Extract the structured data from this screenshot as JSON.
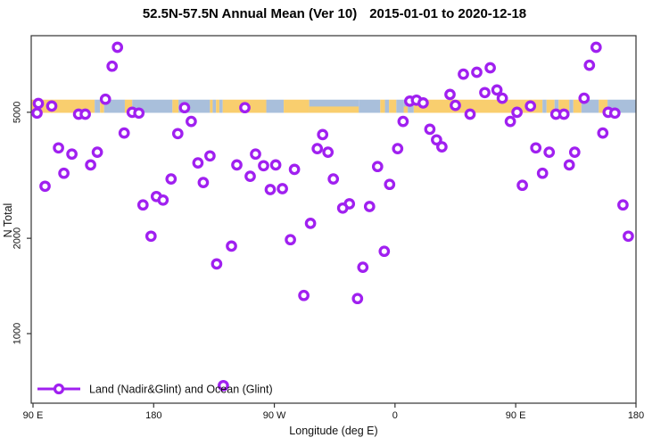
{
  "title": {
    "main": "52.5N-57.5N Annual Mean (Ver 10)",
    "dates": "2015-01-01 to 2020-12-18"
  },
  "colors": {
    "marker_purple": "#A020F0",
    "land": "#F9CE6E",
    "ocean": "#A9BFDB",
    "axis": "#333333"
  },
  "chart_data": {
    "type": "scatter",
    "title": "52.5N-57.5N Annual Mean (Ver 10)  2015-01-01 to 2020-12-18",
    "xlabel": "Longitude (deg E)",
    "ylabel": "N Total",
    "legend": "Land (Nadir&Glint) and Ocean (Glint)",
    "x_axis": {
      "note": "longitude axis wraps 450 degrees: 90E to 180 to 90W to 0 to 90E to 180",
      "range": [
        87,
        540
      ],
      "ticks": [
        {
          "pos": 90,
          "label": "90 E"
        },
        {
          "pos": 180,
          "label": "180"
        },
        {
          "pos": 270,
          "label": "90 W"
        },
        {
          "pos": 360,
          "label": "0"
        },
        {
          "pos": 450,
          "label": "90 E"
        },
        {
          "pos": 540,
          "label": "180"
        }
      ]
    },
    "y_axis": {
      "scale": "log",
      "range": [
        600,
        8700
      ],
      "ticks": [
        {
          "value": 1000,
          "label": "1000"
        },
        {
          "value": 2000,
          "label": "2000"
        },
        {
          "value": 5000,
          "label": "5000"
        }
      ]
    },
    "map_band": {
      "description": "land/ocean map strip across the 52.5N-57.5N latitude band",
      "n_total_range": [
        4980,
        5480
      ],
      "segments": [
        [
          87,
          136,
          "land"
        ],
        [
          136,
          140,
          "ocean"
        ],
        [
          140,
          143,
          "land"
        ],
        [
          143,
          158.5,
          "ocean"
        ],
        [
          158.5,
          164,
          "land"
        ],
        [
          164,
          194,
          "ocean"
        ],
        [
          194,
          198.5,
          "land"
        ],
        [
          198.5,
          222,
          "ocean"
        ],
        [
          222,
          224,
          "land"
        ],
        [
          224,
          226.5,
          "ocean"
        ],
        [
          226.5,
          229,
          "land"
        ],
        [
          229,
          231.5,
          "ocean"
        ],
        [
          231.5,
          264,
          "land"
        ],
        [
          264,
          277,
          "ocean"
        ],
        [
          277,
          296,
          "land"
        ],
        [
          296,
          333,
          "mixed"
        ],
        [
          333,
          349,
          "ocean"
        ],
        [
          349,
          352.5,
          "land"
        ],
        [
          352.5,
          355.5,
          "ocean"
        ],
        [
          355.5,
          361,
          "land"
        ],
        [
          361,
          366.5,
          "ocean"
        ],
        [
          366.5,
          369.5,
          "mixed"
        ],
        [
          369.5,
          374,
          "ocean"
        ],
        [
          374,
          470,
          "land"
        ],
        [
          470,
          473,
          "ocean"
        ],
        [
          473,
          479,
          "land"
        ],
        [
          479,
          482,
          "ocean"
        ],
        [
          482,
          490,
          "land"
        ],
        [
          490,
          493,
          "ocean"
        ],
        [
          493,
          499,
          "land"
        ],
        [
          499,
          512,
          "ocean"
        ],
        [
          512,
          518.5,
          "land"
        ],
        [
          518.5,
          540,
          "ocean"
        ]
      ]
    },
    "points": [
      [
        153,
        8020
      ],
      [
        149,
        6990
      ],
      [
        144,
        5500
      ],
      [
        94,
        5330
      ],
      [
        104,
        5230
      ],
      [
        93,
        4970
      ],
      [
        124,
        4930
      ],
      [
        129,
        4930
      ],
      [
        164,
        5000
      ],
      [
        169,
        4970
      ],
      [
        203,
        5170
      ],
      [
        248,
        5170
      ],
      [
        208,
        4680
      ],
      [
        158,
        4300
      ],
      [
        198,
        4280
      ],
      [
        109,
        3860
      ],
      [
        119,
        3690
      ],
      [
        138,
        3740
      ],
      [
        133,
        3410
      ],
      [
        113,
        3210
      ],
      [
        99,
        2920
      ],
      [
        213,
        3460
      ],
      [
        222,
        3640
      ],
      [
        242,
        3410
      ],
      [
        256,
        3690
      ],
      [
        252,
        3140
      ],
      [
        262,
        3390
      ],
      [
        271,
        3410
      ],
      [
        285,
        3300
      ],
      [
        267,
        2850
      ],
      [
        276,
        2870
      ],
      [
        193,
        3080
      ],
      [
        217,
        3000
      ],
      [
        182,
        2710
      ],
      [
        187,
        2640
      ],
      [
        172,
        2550
      ],
      [
        306,
        4250
      ],
      [
        302,
        3840
      ],
      [
        310,
        3740
      ],
      [
        314,
        3080
      ],
      [
        297,
        2230
      ],
      [
        510,
        8020
      ],
      [
        505,
        7040
      ],
      [
        411,
        6600
      ],
      [
        421,
        6690
      ],
      [
        431,
        6910
      ],
      [
        427,
        5770
      ],
      [
        436,
        5880
      ],
      [
        440,
        5540
      ],
      [
        401,
        5690
      ],
      [
        405,
        5260
      ],
      [
        371,
        5420
      ],
      [
        376,
        5460
      ],
      [
        381,
        5350
      ],
      [
        366,
        4680
      ],
      [
        416,
        4930
      ],
      [
        451,
        5000
      ],
      [
        446,
        4680
      ],
      [
        461,
        5230
      ],
      [
        480,
        4930
      ],
      [
        486,
        4930
      ],
      [
        501,
        5540
      ],
      [
        519,
        5000
      ],
      [
        524,
        4970
      ],
      [
        515,
        4300
      ],
      [
        386,
        4420
      ],
      [
        391,
        4090
      ],
      [
        395,
        3890
      ],
      [
        362,
        3840
      ],
      [
        347,
        3370
      ],
      [
        356,
        2960
      ],
      [
        465,
        3860
      ],
      [
        475,
        3740
      ],
      [
        490,
        3410
      ],
      [
        494,
        3740
      ],
      [
        470,
        3210
      ],
      [
        455,
        2940
      ],
      [
        530,
        2550
      ],
      [
        326,
        2570
      ],
      [
        321,
        2490
      ],
      [
        341,
        2520
      ],
      [
        178,
        2030
      ],
      [
        238,
        1890
      ],
      [
        227,
        1660
      ],
      [
        282,
        1980
      ],
      [
        292,
        1320
      ],
      [
        232,
        685
      ],
      [
        352,
        1820
      ],
      [
        336,
        1620
      ],
      [
        332,
        1290
      ],
      [
        534,
        2030
      ]
    ]
  }
}
